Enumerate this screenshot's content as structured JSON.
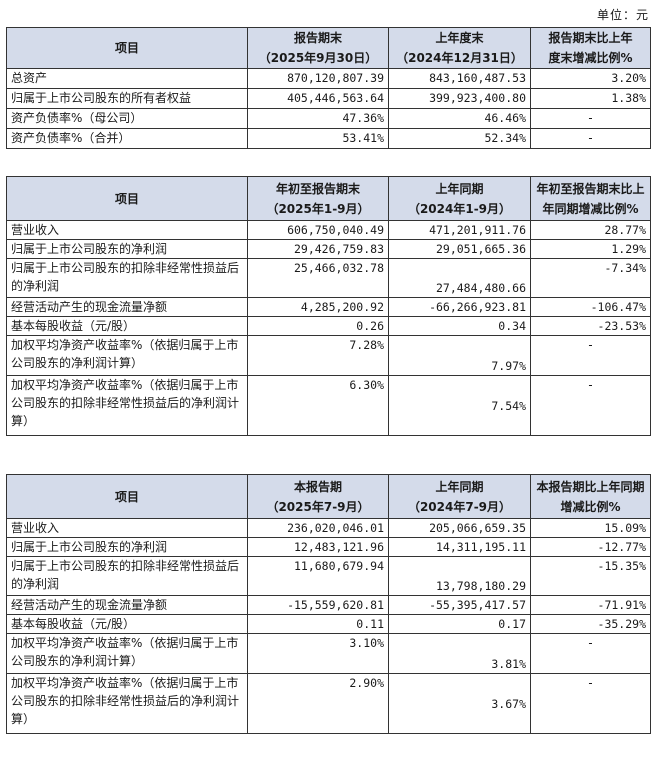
{
  "unit_label": "单位：元",
  "table1": {
    "headers": {
      "item": "项目",
      "col2_line1": "报告期末",
      "col2_line2": "（2025年9月30日）",
      "col3_line1": "上年度末",
      "col3_line2": "（2024年12月31日）",
      "col4_line1": "报告期末比上年",
      "col4_line2": "度末增减比例%"
    },
    "rows": [
      {
        "label": "总资产",
        "v1": "870,120,807.39",
        "v2": "843,160,487.53",
        "v3": "3.20%"
      },
      {
        "label": "归属于上市公司股东的所有者权益",
        "v1": "405,446,563.64",
        "v2": "399,923,400.80",
        "v3": "1.38%"
      },
      {
        "label": "资产负债率%（母公司）",
        "v1": "47.36%",
        "v2": "46.46%",
        "v3": "-"
      },
      {
        "label": "资产负债率%（合并）",
        "v1": "53.41%",
        "v2": "52.34%",
        "v3": "-"
      }
    ]
  },
  "table2": {
    "headers": {
      "item": "项目",
      "col2_line1": "年初至报告期末",
      "col2_line2": "（2025年1-9月）",
      "col3_line1": "上年同期",
      "col3_line2": "（2024年1-9月）",
      "col4_line1": "年初至报告期末比上",
      "col4_line2": "年同期增减比例%"
    },
    "rows": [
      {
        "label": "营业收入",
        "v1": "606,750,040.49",
        "v2": "471,201,911.76",
        "v3": "28.77%"
      },
      {
        "label": "归属于上市公司股东的净利润",
        "v1": "29,426,759.83",
        "v2": "29,051,665.36",
        "v3": "1.29%"
      },
      {
        "label": "归属于上市公司股东的扣除非经常性损益后的净利润",
        "v1": "25,466,032.78",
        "v2": "27,484,480.66",
        "v3": "-7.34%"
      },
      {
        "label": "经营活动产生的现金流量净额",
        "v1": "4,285,200.92",
        "v2": "-66,266,923.81",
        "v3": "-106.47%"
      },
      {
        "label": "基本每股收益（元/股）",
        "v1": "0.26",
        "v2": "0.34",
        "v3": "-23.53%"
      },
      {
        "label": "加权平均净资产收益率%（依据归属于上市公司股东的净利润计算）",
        "v1": "7.28%",
        "v2": "7.97%",
        "v3": "-"
      },
      {
        "label": "加权平均净资产收益率%（依据归属于上市公司股东的扣除非经常性损益后的净利润计算）",
        "v1": "6.30%",
        "v2": "7.54%",
        "v3": "-"
      }
    ]
  },
  "table3": {
    "headers": {
      "item": "项目",
      "col2_line1": "本报告期",
      "col2_line2": "（2025年7-9月）",
      "col3_line1": "上年同期",
      "col3_line2": "（2024年7-9月）",
      "col4_line1": "本报告期比上年同期",
      "col4_line2": "增减比例%"
    },
    "rows": [
      {
        "label": "营业收入",
        "v1": "236,020,046.01",
        "v2": "205,066,659.35",
        "v3": "15.09%"
      },
      {
        "label": "归属于上市公司股东的净利润",
        "v1": "12,483,121.96",
        "v2": "14,311,195.11",
        "v3": "-12.77%"
      },
      {
        "label": "归属于上市公司股东的扣除非经常性损益后的净利润",
        "v1": "11,680,679.94",
        "v2": "13,798,180.29",
        "v3": "-15.35%"
      },
      {
        "label": "经营活动产生的现金流量净额",
        "v1": "-15,559,620.81",
        "v2": "-55,395,417.57",
        "v3": "-71.91%"
      },
      {
        "label": "基本每股收益（元/股）",
        "v1": "0.11",
        "v2": "0.17",
        "v3": "-35.29%"
      },
      {
        "label": "加权平均净资产收益率%（依据归属于上市公司股东的净利润计算）",
        "v1": "3.10%",
        "v2": "3.81%",
        "v3": "-"
      },
      {
        "label": "加权平均净资产收益率%（依据归属于上市公司股东的扣除非经常性损益后的净利润计算）",
        "v1": "2.90%",
        "v2": "3.67%",
        "v3": "-"
      }
    ]
  }
}
